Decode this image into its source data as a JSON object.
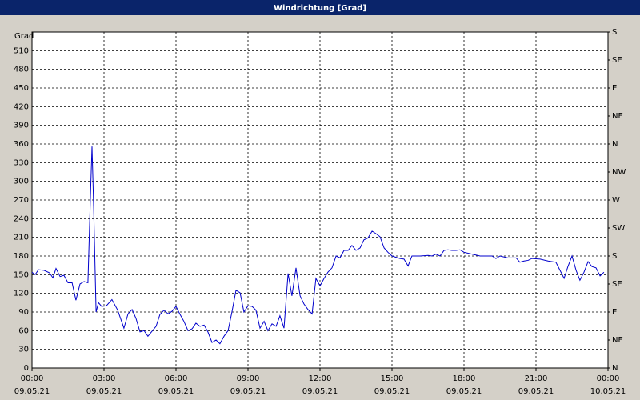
{
  "chart_data": {
    "type": "line",
    "title": "Windrichtung [Grad]",
    "y_label": "Grad",
    "color": "#0000cc",
    "grid": true,
    "xlim": [
      0,
      24
    ],
    "xticks": [
      {
        "value": 0,
        "label": [
          "00:00",
          "09.05.21"
        ]
      },
      {
        "value": 3,
        "label": [
          "03:00",
          "09.05.21"
        ]
      },
      {
        "value": 6,
        "label": [
          "06:00",
          "09.05.21"
        ]
      },
      {
        "value": 9,
        "label": [
          "09:00",
          "09.05.21"
        ]
      },
      {
        "value": 12,
        "label": [
          "12:00",
          "09.05.21"
        ]
      },
      {
        "value": 15,
        "label": [
          "15:00",
          "09.05.21"
        ]
      },
      {
        "value": 18,
        "label": [
          "18:00",
          "09.05.21"
        ]
      },
      {
        "value": 21,
        "label": [
          "21:00",
          "09.05.21"
        ]
      },
      {
        "value": 24,
        "label": [
          "00:00",
          "10.05.21"
        ]
      }
    ],
    "ylim": [
      0,
      540
    ],
    "yticks": [
      0,
      30,
      60,
      90,
      120,
      150,
      180,
      210,
      240,
      270,
      300,
      330,
      360,
      390,
      420,
      450,
      480,
      510
    ],
    "y2lim": [
      0,
      540
    ],
    "y2ticks": [
      {
        "value": 0,
        "label": "N"
      },
      {
        "value": 45,
        "label": "NE"
      },
      {
        "value": 90,
        "label": "E"
      },
      {
        "value": 135,
        "label": "SE"
      },
      {
        "value": 180,
        "label": "S"
      },
      {
        "value": 225,
        "label": "SW"
      },
      {
        "value": 270,
        "label": "W"
      },
      {
        "value": 315,
        "label": "NW"
      },
      {
        "value": 360,
        "label": "N"
      },
      {
        "value": 405,
        "label": "NE"
      },
      {
        "value": 450,
        "label": "E"
      },
      {
        "value": 495,
        "label": "SE"
      },
      {
        "value": 540,
        "label": "S"
      }
    ],
    "x": [
      0,
      0.13,
      0.27,
      0.5,
      0.73,
      0.87,
      1,
      1.17,
      1.33,
      1.5,
      1.67,
      1.83,
      2,
      2.17,
      2.33,
      2.43,
      2.5,
      2.57,
      2.67,
      2.77,
      2.9,
      3.1,
      3.33,
      3.57,
      3.83,
      4,
      4.17,
      4.33,
      4.5,
      4.67,
      4.83,
      5,
      5.17,
      5.33,
      5.5,
      5.67,
      5.83,
      6,
      6.17,
      6.33,
      6.5,
      6.67,
      6.83,
      7,
      7.17,
      7.33,
      7.5,
      7.67,
      7.83,
      8,
      8.17,
      8.33,
      8.5,
      8.67,
      8.83,
      9,
      9.17,
      9.33,
      9.5,
      9.67,
      9.83,
      10,
      10.17,
      10.33,
      10.5,
      10.67,
      10.83,
      11,
      11.17,
      11.33,
      11.5,
      11.67,
      11.83,
      12,
      12.17,
      12.33,
      12.5,
      12.67,
      12.83,
      13,
      13.17,
      13.33,
      13.5,
      13.67,
      13.83,
      14,
      14.17,
      14.33,
      14.5,
      14.67,
      14.83,
      15,
      15.33,
      15.5,
      15.67,
      15.83,
      16.17,
      16.5,
      16.67,
      16.83,
      17,
      17.17,
      17.33,
      17.5,
      17.67,
      17.83,
      18,
      18.33,
      18.67,
      19,
      19.17,
      19.33,
      19.5,
      19.83,
      20,
      20.17,
      20.33,
      20.5,
      20.67,
      20.83,
      21.17,
      21.5,
      21.83,
      22,
      22.17,
      22.33,
      22.5,
      22.67,
      22.83,
      23,
      23.17,
      23.33,
      23.5,
      23.67,
      23.83
    ],
    "values": [
      154,
      150,
      158,
      157,
      153,
      145,
      160,
      147,
      149,
      137,
      137,
      109,
      135,
      139,
      137,
      270,
      356,
      257,
      90,
      105,
      99,
      100,
      110,
      93,
      64,
      87,
      94,
      80,
      58,
      60,
      51,
      59,
      67,
      86,
      93,
      87,
      91,
      99,
      86,
      75,
      60,
      63,
      72,
      67,
      69,
      58,
      41,
      45,
      39,
      51,
      60,
      90,
      125,
      121,
      90,
      100,
      99,
      93,
      64,
      75,
      60,
      71,
      67,
      84,
      64,
      152,
      116,
      161,
      116,
      103,
      94,
      87,
      144,
      132,
      144,
      154,
      161,
      180,
      177,
      189,
      189,
      197,
      189,
      193,
      206,
      209,
      220,
      216,
      211,
      193,
      186,
      180,
      176,
      175,
      164,
      180,
      180,
      181,
      180,
      183,
      180,
      189,
      190,
      189,
      189,
      190,
      186,
      183,
      180,
      180,
      180,
      176,
      180,
      177,
      177,
      177,
      170,
      172,
      173,
      176,
      175,
      172,
      170,
      157,
      144,
      163,
      180,
      157,
      141,
      154,
      171,
      163,
      161,
      148,
      154
    ]
  }
}
